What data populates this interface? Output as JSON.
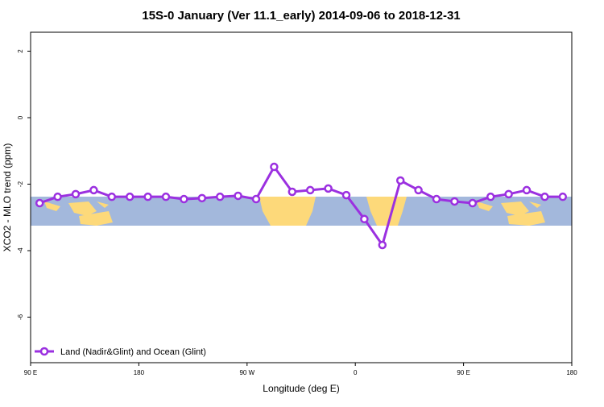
{
  "chart_data": {
    "type": "line",
    "title": "15S-0 January (Ver 11.1_early)   2014-09-06 to 2018-12-31",
    "xlabel": "Longitude (deg E)",
    "ylabel": "XCO2 - MLO trend (ppm)",
    "xlim": [
      90,
      540
    ],
    "xticks": [
      {
        "value": 90,
        "label": "90 E"
      },
      {
        "value": 180,
        "label": "180"
      },
      {
        "value": 270,
        "label": "90 W"
      },
      {
        "value": 360,
        "label": "0"
      },
      {
        "value": 450,
        "label": "90 E"
      },
      {
        "value": 540,
        "label": "180"
      }
    ],
    "ylim": [
      -7.37,
      2.57
    ],
    "yticks": [
      -6,
      -4,
      -2,
      0,
      2
    ],
    "legend": "bottom-left",
    "x": [
      97.5,
      112.5,
      127.5,
      142.5,
      157.5,
      172.5,
      187.5,
      202.5,
      217.5,
      232.5,
      247.5,
      262.5,
      277.5,
      292.5,
      307.5,
      322.5,
      337.5,
      352.5,
      367.5,
      382.5,
      397.5,
      412.5,
      427.5,
      442.5,
      457.5,
      472.5,
      487.5,
      502.5,
      517.5,
      532.5
    ],
    "series": [
      {
        "name": "Land (Nadir&Glint) and Ocean (Glint)",
        "color": "#9b30e0",
        "values": [
          -2.57,
          -2.38,
          -2.3,
          -2.18,
          -2.38,
          -2.38,
          -2.38,
          -2.38,
          -2.45,
          -2.42,
          -2.38,
          -2.35,
          -2.45,
          -1.48,
          -2.23,
          -2.18,
          -2.13,
          -2.33,
          -3.05,
          -3.83,
          -1.89,
          -2.18,
          -2.45,
          -2.52,
          -2.57,
          -2.38,
          -2.3,
          -2.18,
          -2.38,
          -2.38
        ]
      }
    ]
  }
}
